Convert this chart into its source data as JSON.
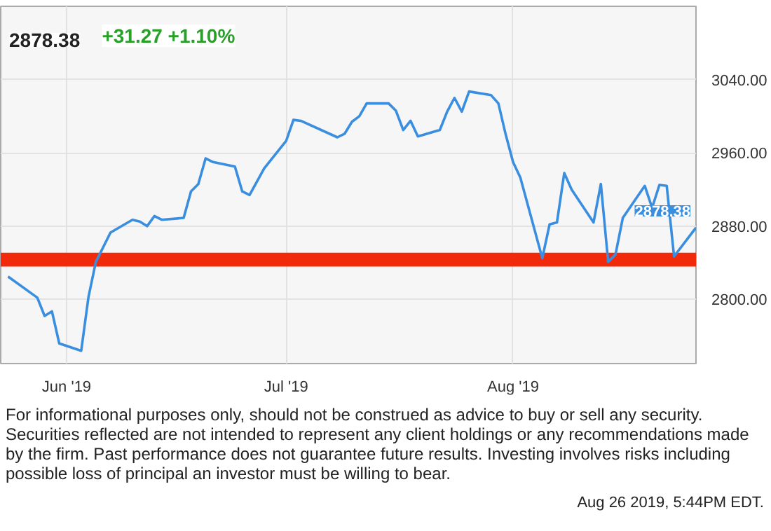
{
  "chart_data": {
    "type": "line",
    "title": "2878.38",
    "subtitle": "+31.27 +1.10%",
    "x": [
      "2019-05-24",
      "2019-05-28",
      "2019-05-29",
      "2019-05-30",
      "2019-05-31",
      "2019-06-03",
      "2019-06-04",
      "2019-06-05",
      "2019-06-07",
      "2019-06-10",
      "2019-06-11",
      "2019-06-12",
      "2019-06-13",
      "2019-06-14",
      "2019-06-17",
      "2019-06-18",
      "2019-06-19",
      "2019-06-20",
      "2019-06-21",
      "2019-06-24",
      "2019-06-25",
      "2019-06-26",
      "2019-06-28",
      "2019-07-01",
      "2019-07-02",
      "2019-07-03",
      "2019-07-08",
      "2019-07-09",
      "2019-07-10",
      "2019-07-11",
      "2019-07-12",
      "2019-07-15",
      "2019-07-16",
      "2019-07-17",
      "2019-07-18",
      "2019-07-19",
      "2019-07-22",
      "2019-07-23",
      "2019-07-24",
      "2019-07-25",
      "2019-07-26",
      "2019-07-29",
      "2019-07-30",
      "2019-07-31",
      "2019-08-01",
      "2019-08-02",
      "2019-08-05",
      "2019-08-06",
      "2019-08-07",
      "2019-08-08",
      "2019-08-09",
      "2019-08-12",
      "2019-08-13",
      "2019-08-14",
      "2019-08-15",
      "2019-08-16",
      "2019-08-19",
      "2019-08-20",
      "2019-08-21",
      "2019-08-22",
      "2019-08-23",
      "2019-08-26"
    ],
    "series": [
      {
        "color": "#3a8ee0",
        "values": [
          2825,
          2802,
          2782,
          2787,
          2752,
          2744,
          2803,
          2841,
          2873,
          2887,
          2885,
          2880,
          2891,
          2887,
          2889,
          2918,
          2926,
          2954,
          2950,
          2945,
          2918,
          2914,
          2943,
          2973,
          2996,
          2995,
          2977,
          2981,
          2994,
          3000,
          3014,
          3014,
          3006,
          2985,
          2995,
          2978,
          2985,
          3005,
          3020,
          3005,
          3027,
          3023,
          3014,
          2980,
          2950,
          2933,
          2845,
          2882,
          2884,
          2938,
          2920,
          2884,
          2926,
          2841,
          2849,
          2889,
          2924,
          2900,
          2925,
          2924,
          2847,
          2878.38
        ],
        "value_labels": [
          null,
          null,
          null,
          null,
          null,
          null,
          null,
          null,
          null,
          null,
          null,
          null,
          null,
          null,
          null,
          null,
          null,
          null,
          null,
          null,
          null,
          null,
          null,
          null,
          null,
          null,
          null,
          null,
          null,
          null,
          null,
          null,
          null,
          null,
          null,
          null,
          null,
          null,
          null,
          null,
          null,
          null,
          null,
          null,
          null,
          null,
          null,
          null,
          null,
          null,
          null,
          null,
          null,
          null,
          null,
          null,
          null,
          null,
          null,
          null,
          null,
          "2878.38"
        ]
      }
    ],
    "xlim": [
      "2019-05-23",
      "2019-08-26"
    ],
    "xticks": [
      {
        "value": "2019-06-01",
        "label": "Jun '19"
      },
      {
        "value": "2019-07-01",
        "label": "Jul '19"
      },
      {
        "value": "2019-08-01",
        "label": "Aug '19"
      }
    ],
    "ylim": [
      2730,
      3120
    ],
    "yticks": [
      {
        "value": 2800,
        "label": "2800.00"
      },
      {
        "value": 2880,
        "label": "2880.00"
      },
      {
        "value": 2960,
        "label": "2960.00"
      },
      {
        "value": 3040,
        "label": "3040.00"
      }
    ],
    "bands": [
      {
        "axis": "y",
        "from": 2836,
        "to": 2851,
        "color": "#f22a0c"
      }
    ],
    "grid": true,
    "marker": "none",
    "line_style": "solid",
    "annotations": [
      "For informational purposes only, should not be construed as advice to buy or sell any security. Securities reflected are not intended to represent any client holdings or any recommendations made by the firm. Past performance does not guarantee future results. Investing involves risks including possible loss of principal an investor must be willing to bear.",
      "Aug 26 2019, 5:44PM EDT."
    ]
  }
}
